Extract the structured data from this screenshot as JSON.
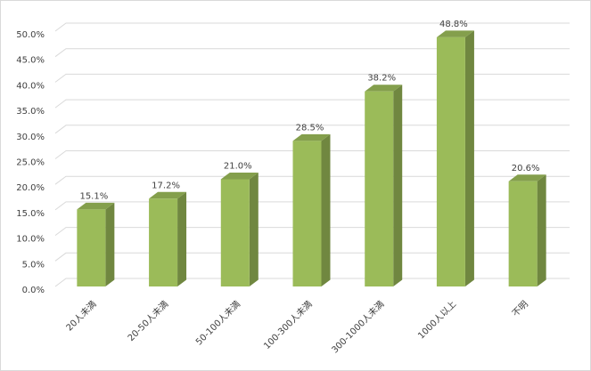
{
  "chart_data": {
    "type": "bar3d",
    "categories": [
      "20人未満",
      "20-50人未満",
      "50-100人未満",
      "100-300人未満",
      "300-1000人未満",
      "1000人以上",
      "不明"
    ],
    "values": [
      15.1,
      17.2,
      21.0,
      28.5,
      38.2,
      48.8,
      20.6
    ],
    "value_labels": [
      "15.1%",
      "17.2%",
      "21.0%",
      "28.5%",
      "38.2%",
      "48.8%",
      "20.6%"
    ],
    "color": "#9bbb59",
    "ylim": [
      0,
      50
    ],
    "yticks": [
      {
        "value": 0,
        "label": "0.0%"
      },
      {
        "value": 5,
        "label": "5.0%"
      },
      {
        "value": 10,
        "label": "10.0%"
      },
      {
        "value": 15,
        "label": "15.0%"
      },
      {
        "value": 20,
        "label": "20.0%"
      },
      {
        "value": 25,
        "label": "25.0%"
      },
      {
        "value": 30,
        "label": "30.0%"
      },
      {
        "value": 35,
        "label": "35.0%"
      },
      {
        "value": 40,
        "label": "40.0%"
      },
      {
        "value": 45,
        "label": "45.0%"
      },
      {
        "value": 50,
        "label": "50.0%"
      }
    ],
    "grid": true
  }
}
